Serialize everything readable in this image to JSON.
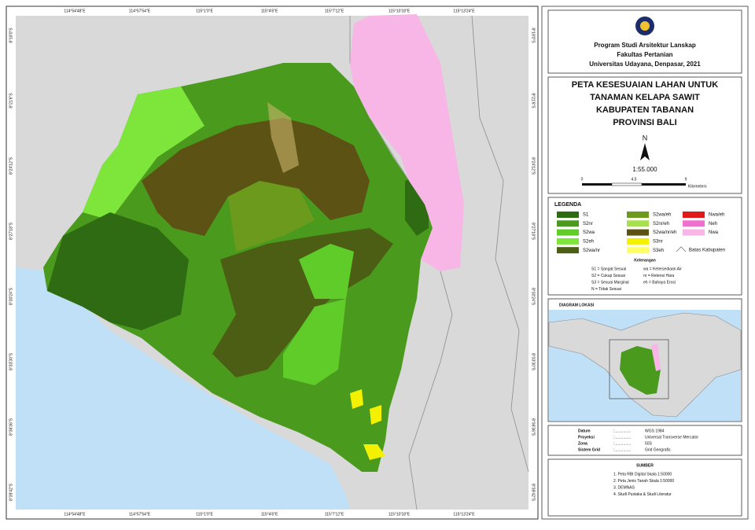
{
  "map": {
    "lon_labels": [
      "114°54'48\"E",
      "114°57'54\"E",
      "115°1'0\"E",
      "115°4'6\"E",
      "115°7'12\"E",
      "115°10'18\"E",
      "115°13'24\"E"
    ],
    "lat_labels": [
      "8°18'0\"S",
      "8°21'6\"S",
      "8°24'12\"S",
      "8°27'18\"S",
      "8°30'24\"S",
      "8°33'30\"S",
      "8°36'36\"S",
      "8°39'42\"S"
    ]
  },
  "header": {
    "institution": [
      "Program Studi Arsitektur Lanskap",
      "Fakultas Pertanian",
      "Universitas Udayana, Denpasar, 2021"
    ],
    "title": [
      "PETA KESESUAIAN LAHAN UNTUK",
      "TANAMAN KELAPA SAWIT",
      "KABUPATEN TABANAN",
      "PROVINSI BALI"
    ]
  },
  "north": "N",
  "scale": "1:55.000",
  "scalebar": {
    "ticks": [
      "0",
      "4,5",
      "9"
    ],
    "unit": "Kilometers"
  },
  "legend": {
    "title": "LEGENDA",
    "items": [
      {
        "label": "S1",
        "color": "#2e6b12"
      },
      {
        "label": "S2nr",
        "color": "#4a9a1e"
      },
      {
        "label": "S2wa",
        "color": "#5fcc2a"
      },
      {
        "label": "S2eh",
        "color": "#7ee63a"
      },
      {
        "label": "S2wa/nr",
        "color": "#4b5e14"
      },
      {
        "label": "S2wa/eh",
        "color": "#6b9a1c"
      },
      {
        "label": "S2nr/eh",
        "color": "#a6e04a"
      },
      {
        "label": "S2wa/nr/eh",
        "color": "#5b5214"
      },
      {
        "label": "S3nr",
        "color": "#f3f000"
      },
      {
        "label": "S3eh",
        "color": "#ffff66"
      },
      {
        "label": "Nwa/eh",
        "color": "#e01a1a"
      },
      {
        "label": "Neh",
        "color": "#f070d0"
      },
      {
        "label": "Nwa",
        "color": "#f7b6e6"
      }
    ],
    "boundary": "Batas Kabupaten"
  },
  "notes": {
    "title": "Keterangan",
    "left": [
      "S1 = Sangat Sesuai",
      "S2 = Cukup Sesuai",
      "S3 = Sesuai Marginal",
      "N  = Tidak Sesuai"
    ],
    "right": [
      "wa = Ketersediaan Air",
      "nr = Retensi Hara",
      "eh = Bahaya Erosi"
    ]
  },
  "location": {
    "title": "DIAGRAM LOKASI"
  },
  "projection": {
    "separator": ":...............",
    "rows": [
      [
        "Datum",
        "WGS 1984"
      ],
      [
        "Proyeksi",
        "Universal Transverse Mercator"
      ],
      [
        "Zona",
        "50S"
      ],
      [
        "Sistem Grid",
        "Grid Geografis"
      ]
    ]
  },
  "sources": {
    "title": "SUMBER",
    "items": [
      "1. Peta RBI Digital Skala 1:50000",
      "2. Peta Jenis Tanah Skala 1:50000",
      "3. DEMNAS",
      "4. Studi Pustaka & Studi Literatur"
    ]
  }
}
